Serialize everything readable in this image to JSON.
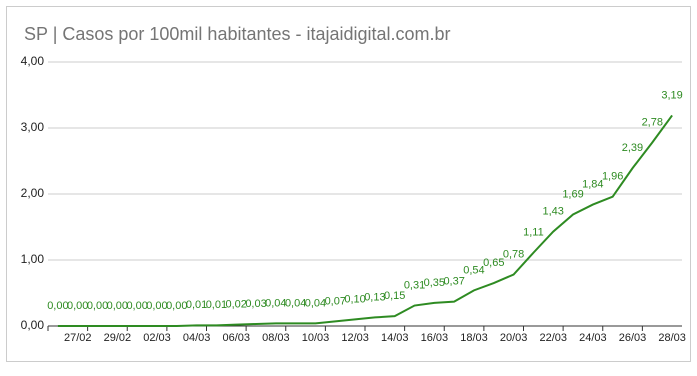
{
  "chart_data": {
    "type": "line",
    "title": "SP | Casos por 100mil habitantes - itajaidigital.com.br",
    "categories": [
      null,
      "27/02",
      null,
      "29/02",
      null,
      "02/03",
      null,
      "04/03",
      null,
      "06/03",
      null,
      "08/03",
      null,
      "10/03",
      null,
      "12/03",
      null,
      "14/03",
      null,
      "16/03",
      null,
      "18/03",
      null,
      "20/03",
      null,
      "22/03",
      null,
      "24/03",
      null,
      "26/03",
      null,
      "28/03"
    ],
    "series": [
      {
        "name": "Casos por 100mil habitantes",
        "color": "#2e8b22",
        "values": [
          0,
          0,
          0,
          0,
          0,
          0,
          0,
          0.01,
          0.01,
          0.02,
          0.03,
          0.04,
          0.04,
          0.04,
          0.07,
          0.1,
          0.13,
          0.15,
          0.31,
          0.35,
          0.37,
          0.54,
          0.65,
          0.78,
          1.11,
          1.43,
          1.69,
          1.84,
          1.96,
          2.39,
          2.78,
          3.19
        ],
        "value_labels": [
          "0,00",
          "0,00",
          "0,00",
          "0,00",
          "0,00",
          "0,00",
          "0,00",
          "0,01",
          "0,01",
          "0,02",
          "0,03",
          "0,04",
          "0,04",
          "0,04",
          "0,07",
          "0,10",
          "0,13",
          "0,15",
          "0,31",
          "0,35",
          "0,37",
          "0,54",
          "0,65",
          "0,78",
          "1,11",
          "1,43",
          "1,69",
          "1,84",
          "1,96",
          "2,39",
          "2,78",
          "3,19"
        ]
      }
    ],
    "ylim": [
      0,
      4
    ],
    "yticks": [
      {
        "value": 0,
        "label": "0,00"
      },
      {
        "value": 1,
        "label": "1,00"
      },
      {
        "value": 2,
        "label": "2,00"
      },
      {
        "value": 3,
        "label": "3,00"
      },
      {
        "value": 4,
        "label": "4,00"
      }
    ],
    "grid": true
  }
}
